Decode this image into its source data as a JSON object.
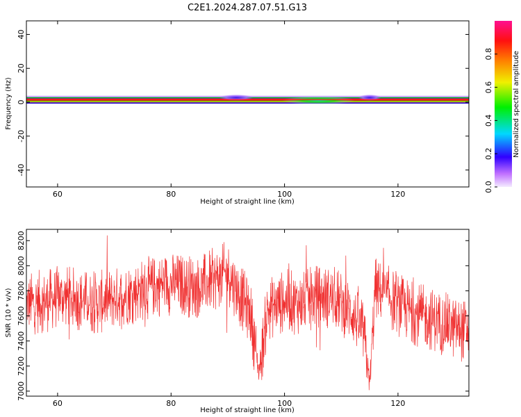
{
  "title": "C2E1.2024.287.07.51.G13",
  "chart_data": [
    {
      "type": "heatmap",
      "xlabel": "Height of straight line (km)",
      "ylabel": "Frequency (Hz)",
      "xlim": [
        54.5,
        132.5
      ],
      "ylim": [
        -50,
        48
      ],
      "xticks": [
        60,
        80,
        100,
        120
      ],
      "yticks": [
        40,
        20,
        0,
        -20,
        -40
      ],
      "yticklabels": [
        "40",
        "20",
        "0",
        "-20",
        "-40"
      ],
      "band_center_hz": 1.5,
      "band_halfwidth_hz": 4,
      "colorbar": {
        "label": "Normalized spectral amplitude",
        "range": [
          0,
          1
        ],
        "ticks": [
          0.0,
          0.2,
          0.4,
          0.6,
          0.8
        ],
        "ticklabels": [
          "0.0",
          "0.2",
          "0.4",
          "0.6",
          "0.8"
        ],
        "colormap": "rainbow (white-violet-blue-cyan-green-yellow-red-magenta)"
      },
      "colors": {
        "peak": "#ff1a1a",
        "mid": "#00e000",
        "low": "#8a2be2",
        "edge": "#e8d8ff"
      },
      "features": [
        {
          "x_range": [
            89,
            94
          ],
          "note": "violet broadening above band"
        },
        {
          "x_range": [
            100,
            112
          ],
          "note": "green/cyan broadening of band"
        },
        {
          "x_range": [
            113.5,
            116.5
          ],
          "note": "violet broadening"
        }
      ]
    },
    {
      "type": "line",
      "xlabel": "Height of straight line (km)",
      "ylabel": "SNR (10 * v/v)",
      "xlim": [
        54.5,
        132.5
      ],
      "ylim": [
        6960,
        8290
      ],
      "xticks": [
        60,
        80,
        100,
        120
      ],
      "yticks": [
        7000,
        7200,
        7400,
        7600,
        7800,
        8000,
        8200
      ],
      "color": "#f03030",
      "x": [
        55,
        58,
        61,
        64,
        67,
        70,
        73,
        76,
        79,
        82,
        85,
        88,
        90,
        92,
        94,
        95.5,
        97,
        100,
        103,
        106,
        109,
        112,
        114,
        115,
        116,
        118,
        121,
        124,
        127,
        130,
        132.5
      ],
      "values": [
        7700,
        7720,
        7760,
        7730,
        7700,
        7740,
        7790,
        7820,
        7860,
        7850,
        7830,
        7900,
        7950,
        7780,
        7620,
        7150,
        7650,
        7720,
        7700,
        7760,
        7740,
        7620,
        7450,
        7050,
        7820,
        7760,
        7660,
        7600,
        7560,
        7500,
        7480
      ]
    }
  ]
}
